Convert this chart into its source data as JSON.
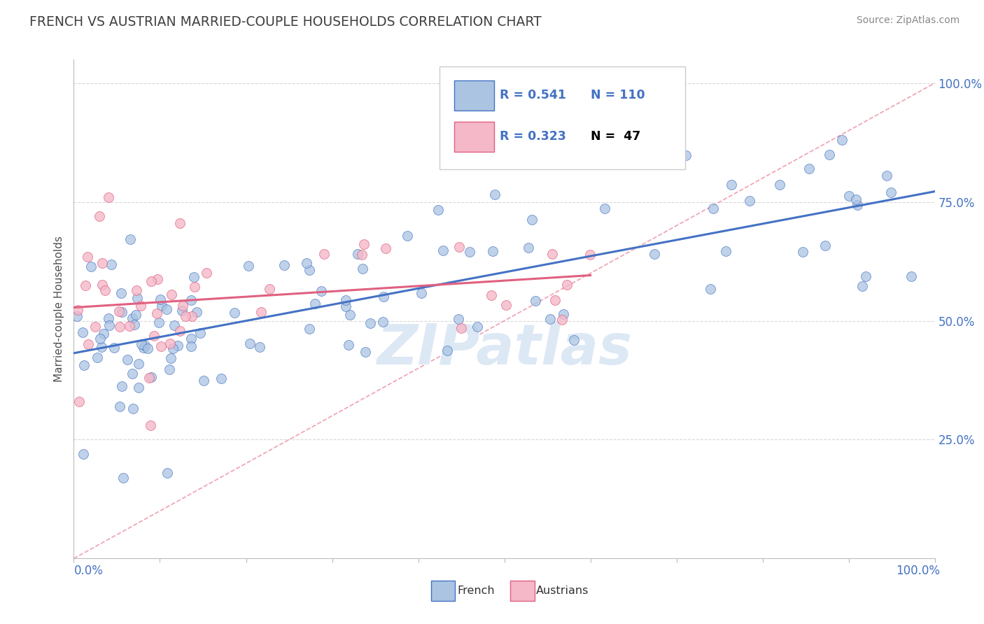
{
  "title": "FRENCH VS AUSTRIAN MARRIED-COUPLE HOUSEHOLDS CORRELATION CHART",
  "source_text": "Source: ZipAtlas.com",
  "ylabel": "Married-couple Households",
  "watermark": "ZIPatlas",
  "french_R": 0.541,
  "french_N": 110,
  "austrian_R": 0.323,
  "austrian_N": 47,
  "french_color": "#aac4e2",
  "french_line_color": "#4472c4",
  "austrian_color": "#f4b8c8",
  "austrian_line_color": "#e06080",
  "diagonal_color": "#f0a0b0",
  "background_color": "#ffffff",
  "grid_color": "#d8d8d8",
  "axis_label_color": "#4472c4",
  "legend_R_color": "#4472c4",
  "legend_N_color": "#4472c4",
  "title_color": "#404040",
  "source_color": "#888888",
  "watermark_color": "#dde8f5",
  "ytick_positions": [
    0.25,
    0.5,
    0.75,
    1.0
  ],
  "ytick_labels": [
    "25.0%",
    "50.0%",
    "75.0%",
    "100.0%"
  ]
}
